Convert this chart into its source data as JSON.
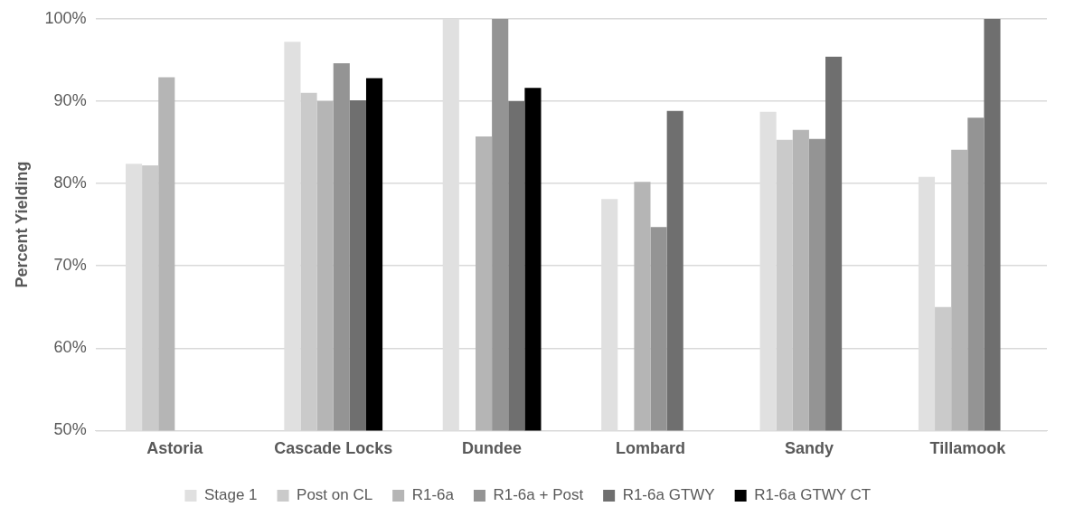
{
  "chart_data": {
    "type": "bar",
    "ylabel": "Percent Yielding",
    "categories": [
      "Astoria",
      "Cascade Locks",
      "Dundee",
      "Lombard",
      "Sandy",
      "Tillamook"
    ],
    "series": [
      {
        "name": "Stage 1",
        "color": "#e0e0e0",
        "values": [
          82.4,
          97.2,
          100,
          78.1,
          88.7,
          80.8
        ]
      },
      {
        "name": "Post on CL",
        "color": "#cacaca",
        "values": [
          82.2,
          91.0,
          null,
          null,
          85.3,
          65.0
        ]
      },
      {
        "name": "R1-6a",
        "color": "#b5b5b5",
        "values": [
          92.9,
          90.0,
          85.7,
          80.2,
          86.5,
          84.1
        ]
      },
      {
        "name": "R1-6a + Post",
        "color": "#949494",
        "values": [
          null,
          94.6,
          100,
          74.7,
          85.4,
          88.0
        ]
      },
      {
        "name": "R1-6a GTWY",
        "color": "#6f6f6f",
        "values": [
          null,
          90.1,
          90.0,
          88.8,
          95.4,
          100
        ]
      },
      {
        "name": "R1-6a GTWY CT",
        "color": "#000000",
        "values": [
          null,
          92.8,
          91.6,
          null,
          null,
          null
        ]
      }
    ],
    "ylim": [
      50,
      100
    ],
    "yticks": [
      {
        "value": 50,
        "label": "50%"
      },
      {
        "value": 60,
        "label": "60%"
      },
      {
        "value": 70,
        "label": "70%"
      },
      {
        "value": 80,
        "label": "80%"
      },
      {
        "value": 90,
        "label": "90%"
      },
      {
        "value": 100,
        "label": "100%"
      }
    ],
    "grid": "y",
    "legend": "bottom"
  }
}
